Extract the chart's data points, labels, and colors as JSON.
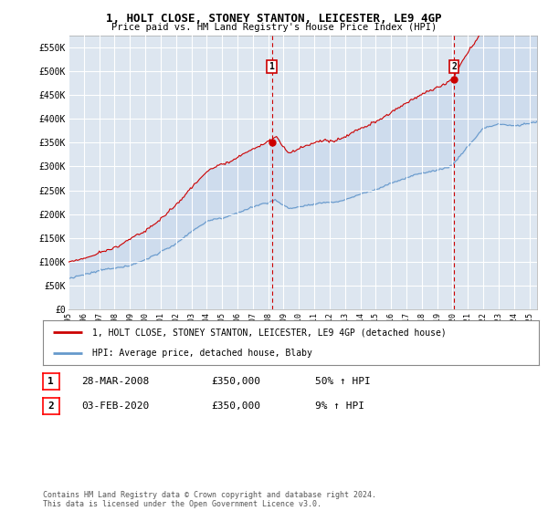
{
  "title": "1, HOLT CLOSE, STONEY STANTON, LEICESTER, LE9 4GP",
  "subtitle": "Price paid vs. HM Land Registry's House Price Index (HPI)",
  "ylabel_ticks": [
    "£0",
    "£50K",
    "£100K",
    "£150K",
    "£200K",
    "£250K",
    "£300K",
    "£350K",
    "£400K",
    "£450K",
    "£500K",
    "£550K"
  ],
  "ytick_values": [
    0,
    50000,
    100000,
    150000,
    200000,
    250000,
    300000,
    350000,
    400000,
    450000,
    500000,
    550000
  ],
  "ylim": [
    0,
    575000
  ],
  "legend_line1": "1, HOLT CLOSE, STONEY STANTON, LEICESTER, LE9 4GP (detached house)",
  "legend_line2": "HPI: Average price, detached house, Blaby",
  "event1_date": "28-MAR-2008",
  "event1_price": "£350,000",
  "event1_hpi": "50% ↑ HPI",
  "event2_date": "03-FEB-2020",
  "event2_price": "£350,000",
  "event2_hpi": "9% ↑ HPI",
  "footnote": "Contains HM Land Registry data © Crown copyright and database right 2024.\nThis data is licensed under the Open Government Licence v3.0.",
  "bg_color": "#dde6f0",
  "fill_color": "#c8d8ec",
  "grid_color": "#ffffff",
  "red_line_color": "#cc0000",
  "blue_line_color": "#6699cc",
  "event_line_color": "#cc0000",
  "event1_year": 2008.23,
  "event2_year": 2020.09,
  "event1_price_val": 350000,
  "event2_price_val": 350000
}
